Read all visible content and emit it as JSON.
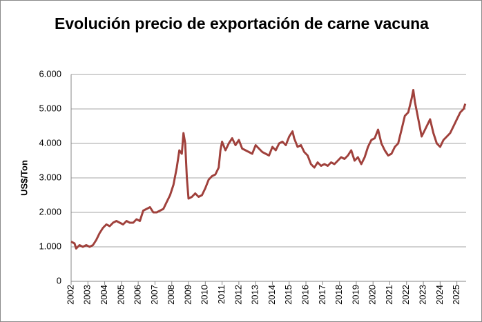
{
  "chart_data": {
    "type": "line",
    "title": "Evolución precio de exportación de carne vacuna",
    "y_label": "US$/Ton",
    "color": "#a0413c",
    "grid": true,
    "xlim": [
      2002,
      2025.55
    ],
    "xticks": [
      2002,
      2003,
      2004,
      2005,
      2006,
      2007,
      2008,
      2009,
      2010,
      2011,
      2012,
      2013,
      2014,
      2015,
      2016,
      2017,
      2018,
      2019,
      2020,
      2021,
      2022,
      2023,
      2024,
      2025
    ],
    "ylim": [
      0,
      6000
    ],
    "yticks": [
      {
        "value": 0,
        "label": "0"
      },
      {
        "value": 1000,
        "label": "1.000"
      },
      {
        "value": 2000,
        "label": "2.000"
      },
      {
        "value": 3000,
        "label": "3.000"
      },
      {
        "value": 4000,
        "label": "4.000"
      },
      {
        "value": 5000,
        "label": "5.000"
      },
      {
        "value": 6000,
        "label": "6.000"
      }
    ],
    "x": [
      2002.0,
      2002.2,
      2002.3,
      2002.5,
      2002.7,
      2002.9,
      2003.1,
      2003.3,
      2003.5,
      2003.7,
      2003.9,
      2004.1,
      2004.3,
      2004.5,
      2004.7,
      2004.9,
      2005.1,
      2005.3,
      2005.5,
      2005.7,
      2005.9,
      2006.1,
      2006.3,
      2006.5,
      2006.7,
      2006.9,
      2007.1,
      2007.3,
      2007.5,
      2007.7,
      2007.9,
      2008.1,
      2008.3,
      2008.45,
      2008.6,
      2008.7,
      2008.8,
      2008.9,
      2009.0,
      2009.2,
      2009.4,
      2009.6,
      2009.8,
      2010.0,
      2010.2,
      2010.4,
      2010.6,
      2010.8,
      2010.9,
      2011.0,
      2011.2,
      2011.4,
      2011.6,
      2011.8,
      2012.0,
      2012.2,
      2012.4,
      2012.6,
      2012.8,
      2013.0,
      2013.2,
      2013.4,
      2013.6,
      2013.8,
      2014.0,
      2014.2,
      2014.4,
      2014.6,
      2014.8,
      2015.0,
      2015.2,
      2015.3,
      2015.5,
      2015.7,
      2015.9,
      2016.1,
      2016.3,
      2016.5,
      2016.7,
      2016.9,
      2017.1,
      2017.3,
      2017.5,
      2017.7,
      2017.9,
      2018.1,
      2018.3,
      2018.5,
      2018.7,
      2018.9,
      2019.1,
      2019.3,
      2019.5,
      2019.7,
      2019.9,
      2020.1,
      2020.3,
      2020.5,
      2020.7,
      2020.9,
      2021.1,
      2021.3,
      2021.5,
      2021.7,
      2021.9,
      2022.1,
      2022.3,
      2022.4,
      2022.5,
      2022.7,
      2022.9,
      2023.1,
      2023.3,
      2023.4,
      2023.6,
      2023.8,
      2024.0,
      2024.2,
      2024.4,
      2024.6,
      2024.8,
      2025.0,
      2025.2,
      2025.4,
      2025.5
    ],
    "values": [
      1150,
      1100,
      950,
      1050,
      1000,
      1050,
      1000,
      1050,
      1200,
      1400,
      1550,
      1650,
      1600,
      1700,
      1750,
      1700,
      1650,
      1750,
      1700,
      1700,
      1800,
      1750,
      2050,
      2100,
      2150,
      2000,
      2000,
      2050,
      2100,
      2300,
      2500,
      2800,
      3300,
      3800,
      3700,
      4300,
      4000,
      3000,
      2400,
      2450,
      2550,
      2450,
      2500,
      2700,
      2950,
      3050,
      3100,
      3300,
      3800,
      4050,
      3800,
      4000,
      4150,
      3950,
      4100,
      3850,
      3800,
      3750,
      3700,
      3950,
      3850,
      3750,
      3700,
      3650,
      3900,
      3800,
      4000,
      4050,
      3950,
      4200,
      4350,
      4150,
      3900,
      3950,
      3750,
      3650,
      3400,
      3300,
      3450,
      3350,
      3400,
      3350,
      3450,
      3400,
      3500,
      3600,
      3550,
      3650,
      3800,
      3500,
      3600,
      3400,
      3600,
      3900,
      4100,
      4150,
      4400,
      4000,
      3800,
      3650,
      3700,
      3900,
      4000,
      4400,
      4800,
      4900,
      5300,
      5550,
      5200,
      4700,
      4200,
      4400,
      4600,
      4700,
      4300,
      4000,
      3900,
      4100,
      4200,
      4300,
      4500,
      4700,
      4900,
      5000,
      5150
    ]
  }
}
